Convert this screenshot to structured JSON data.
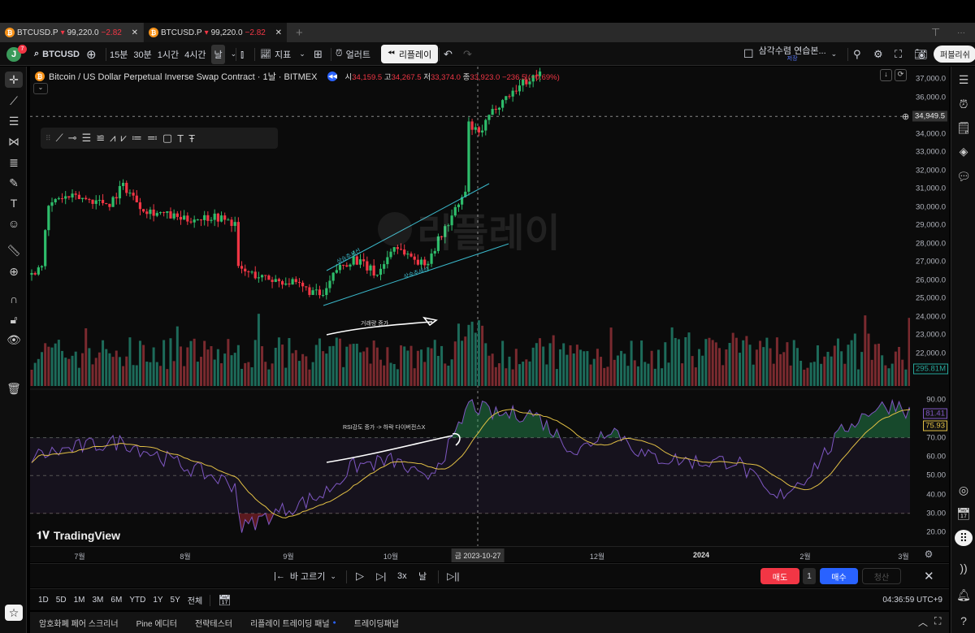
{
  "tabs": [
    {
      "symbol": "BTCUSD.P",
      "price": "99,220.0",
      "change": "−2.82"
    },
    {
      "symbol": "BTCUSD.P",
      "price": "99,220.0",
      "change": "−2.82"
    }
  ],
  "toolbar": {
    "avatar": "J",
    "notif_count": "7",
    "symbol": "BTCUSD",
    "intervals": [
      "15분",
      "30분",
      "1시간",
      "4시간",
      "날"
    ],
    "indicators": "지표",
    "alert": "얼러트",
    "replay": "리플레이",
    "layout_name": "삼각수렴 연습본...",
    "layout_status": "저장",
    "publish": "퍼블리쉬"
  },
  "legend": {
    "title": "Bitcoin / US Dollar Perpetual Inverse Swap Contract · 1날 · BITMEX",
    "o_label": "시",
    "o": "34,159.5",
    "h_label": "고",
    "h": "34,267.5",
    "l_label": "저",
    "l": "33,374.0",
    "c_label": "종",
    "c": "33,923.0",
    "chg": "−236.5 (−0.69%)"
  },
  "price_axis": {
    "labels": [
      "37,000.0",
      "36,000.0",
      "34,949.5",
      "34,000.0",
      "33,000.0",
      "32,000.0",
      "31,000.0",
      "30,000.0",
      "29,000.0",
      "28,000.0",
      "27,000.0",
      "26,000.0",
      "25,000.0",
      "24,000.0",
      "23,000.0",
      "22,000.0"
    ],
    "volume_badge": "295.81M"
  },
  "rsi_axis": {
    "labels": [
      "90.00",
      "70.00",
      "60.00",
      "50.00",
      "40.00",
      "30.00",
      "20.00"
    ],
    "rsi_value": "81.41",
    "ma_value": "75.93"
  },
  "time_axis": {
    "labels": [
      "7월",
      "8월",
      "9월",
      "10월",
      "12월",
      "2024",
      "2월",
      "3월"
    ],
    "crosshair_date": "금 2023-10-27"
  },
  "annotations": {
    "upper_trend": "상승추세선",
    "lower_trend": "상승추세선",
    "volume_note": "거래량 증가",
    "rsi_note": "RSI강도 증가 -> 하락 다이버전스X",
    "watermark": "리플레이"
  },
  "logo": "TradingView",
  "replay_bar": {
    "select_bar": "바 고르기",
    "speed": "3x",
    "interval": "날",
    "sell": "매도",
    "qty": "1",
    "buy": "매수",
    "close": "청산"
  },
  "ranges": [
    "1D",
    "5D",
    "1M",
    "3M",
    "6M",
    "YTD",
    "1Y",
    "5Y",
    "전체"
  ],
  "clock": "04:36:59 UTC+9",
  "bottom_tabs": [
    "암호화폐 페어 스크리너",
    "Pine 에디터",
    "전략테스터",
    "리플레이 트레이딩 패널",
    "트레이딩패널"
  ],
  "colors": {
    "up": "#2ebd6b",
    "down": "#f23645",
    "rsi": "#7e57c2",
    "rsi_ma": "#e2c045",
    "trend": "#3ab7c9",
    "buy": "#2962ff",
    "sell": "#f23645"
  },
  "chart_data": {
    "type": "candlestick",
    "price_closes": [
      [
        "2023-06-17",
        26300
      ],
      [
        "2023-06-20",
        27000
      ],
      [
        "2023-06-22",
        30000
      ],
      [
        "2023-06-25",
        30500
      ],
      [
        "2023-07-01",
        30500
      ],
      [
        "2023-07-10",
        30200
      ],
      [
        "2023-07-14",
        31200
      ],
      [
        "2023-07-20",
        29900
      ],
      [
        "2023-08-01",
        29300
      ],
      [
        "2023-08-10",
        29500
      ],
      [
        "2023-08-16",
        29100
      ],
      [
        "2023-08-17",
        26600
      ],
      [
        "2023-08-25",
        26100
      ],
      [
        "2023-09-01",
        25900
      ],
      [
        "2023-09-11",
        25100
      ],
      [
        "2023-09-15",
        26600
      ],
      [
        "2023-09-20",
        27200
      ],
      [
        "2023-09-27",
        26300
      ],
      [
        "2023-10-02",
        27900
      ],
      [
        "2023-10-11",
        26800
      ],
      [
        "2023-10-16",
        28500
      ],
      [
        "2023-10-20",
        29800
      ],
      [
        "2023-10-23",
        30800
      ],
      [
        "2023-10-24",
        34500
      ],
      [
        "2023-10-27",
        33923
      ],
      [
        "2023-11-01",
        35500
      ],
      [
        "2023-11-09",
        36800
      ],
      [
        "2023-11-14",
        37300
      ]
    ],
    "rsi": [
      [
        "2023-06-17",
        60
      ],
      [
        "2023-07-01",
        65
      ],
      [
        "2023-07-14",
        68
      ],
      [
        "2023-08-01",
        55
      ],
      [
        "2023-08-16",
        45
      ],
      [
        "2023-08-18",
        22
      ],
      [
        "2023-08-25",
        28
      ],
      [
        "2023-09-11",
        40
      ],
      [
        "2023-09-20",
        55
      ],
      [
        "2023-10-02",
        58
      ],
      [
        "2023-10-11",
        47
      ],
      [
        "2023-10-20",
        70
      ],
      [
        "2023-10-24",
        88
      ],
      [
        "2023-11-01",
        82
      ],
      [
        "2023-11-12",
        83
      ],
      [
        "2023-11-20",
        70
      ],
      [
        "2023-11-25",
        62
      ],
      [
        "2023-12-05",
        76
      ],
      [
        "2023-12-15",
        60
      ],
      [
        "2024-01-01",
        57
      ],
      [
        "2024-01-11",
        58
      ],
      [
        "2024-01-22",
        37
      ],
      [
        "2024-02-01",
        50
      ],
      [
        "2024-02-12",
        75
      ],
      [
        "2024-02-20",
        85
      ],
      [
        "2024-02-28",
        88
      ],
      [
        "2024-03-03",
        81.41
      ]
    ],
    "price_range": [
      21500,
      37400
    ],
    "rsi_range": [
      15,
      95
    ],
    "rsi_bands": [
      30,
      50,
      70
    ]
  }
}
